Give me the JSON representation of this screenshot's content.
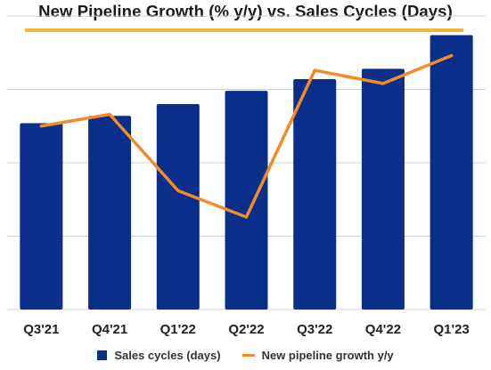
{
  "colors": {
    "bar": "#0a2f8b",
    "line": "#f28c28",
    "title_rule": "#f5b731",
    "grid": "#d0d0d0"
  },
  "chart_data": {
    "type": "bar",
    "title": "New Pipeline Growth (% y/y) vs. Sales Cycles (Days)",
    "categories": [
      "Q3'21",
      "Q4'21",
      "Q1'22",
      "Q2'22",
      "Q3'22",
      "Q4'22",
      "Q1'23"
    ],
    "grid": true,
    "legend_position": "bottom",
    "ylim": [
      0,
      100
    ],
    "series": [
      {
        "name": "Sales cycles (days)",
        "type": "bar",
        "values": [
          63.5,
          66,
          70,
          74.5,
          78.5,
          82,
          93.5
        ]
      },
      {
        "name": "New pipeline growth y/y",
        "type": "line",
        "values": [
          62.5,
          66.5,
          40.5,
          31.5,
          81.5,
          77,
          86.5
        ]
      }
    ]
  }
}
